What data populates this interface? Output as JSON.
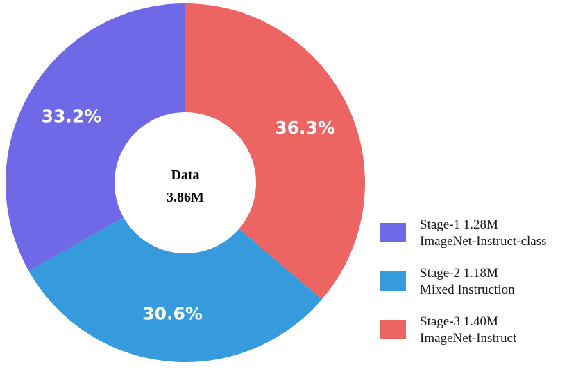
{
  "chart_data": {
    "type": "pie",
    "donut": true,
    "center_label": {
      "line1": "Data",
      "line2": "3.86M"
    },
    "slices": [
      {
        "label_line1": "Stage-3 1.40M",
        "label_line2": "ImageNet-Instruct",
        "percent": 36.3,
        "percent_label": "36.3%",
        "color": "#ec6563"
      },
      {
        "label_line1": "Stage-2 1.18M",
        "label_line2": "Mixed Instruction",
        "percent": 30.6,
        "percent_label": "30.6%",
        "color": "#359bdc"
      },
      {
        "label_line1": "Stage-1 1.28M",
        "label_line2": "ImageNet-Instruct-class",
        "percent": 33.2,
        "percent_label": "33.2%",
        "color": "#6f69e8"
      }
    ],
    "legend": [
      {
        "line1": "Stage-1 1.28M",
        "line2": "ImageNet-Instruct-class",
        "color": "#6f69e8"
      },
      {
        "line1": "Stage-2 1.18M",
        "line2": "Mixed Instruction",
        "color": "#359bdc"
      },
      {
        "line1": "Stage-3 1.40M",
        "line2": "ImageNet-Instruct",
        "color": "#ec6563"
      }
    ],
    "legend_position": "bottom-right",
    "start_angle": "top, clockwise"
  }
}
